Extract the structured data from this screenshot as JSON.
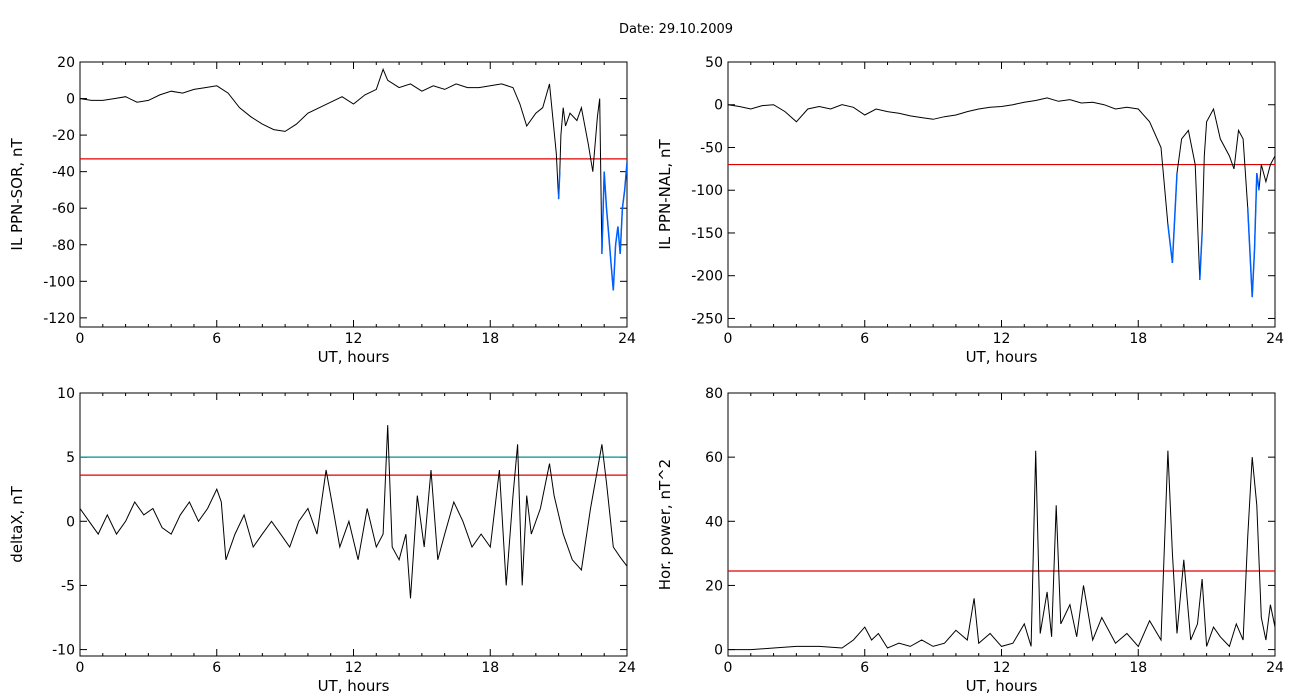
{
  "title": "Date:  29.10.2009",
  "colors": {
    "data": "#000000",
    "red": "#e00000",
    "blue": "#0060ff",
    "green": "#00c000",
    "teal": "#009090"
  },
  "chart_data": [
    {
      "type": "line",
      "ylabel": "IL PPN-SOR, nT",
      "xlabel": "UT, hours",
      "xlim": [
        0,
        24
      ],
      "ylim": [
        -125,
        20
      ],
      "xticks": [
        0,
        6,
        12,
        18,
        24
      ],
      "yticks": [
        20,
        0,
        -20,
        -40,
        -60,
        -80,
        -100,
        -120
      ],
      "threshold": -33,
      "series": [
        {
          "x": [
            0,
            0.5,
            1,
            1.5,
            2,
            2.5,
            3,
            3.5,
            4,
            4.5,
            5,
            5.5,
            6,
            6.5,
            7,
            7.5,
            8,
            8.5,
            9,
            9.5,
            10,
            10.5,
            11,
            11.5,
            12,
            12.5,
            13,
            13.3,
            13.5,
            14,
            14.5,
            15,
            15.5,
            16,
            16.5,
            17,
            17.5,
            18,
            18.5,
            19,
            19.3,
            19.6,
            20,
            20.3,
            20.6,
            20.9,
            21,
            21.05,
            21.1,
            21.2,
            21.3,
            21.5,
            21.8,
            22,
            22.3,
            22.5,
            22.7,
            22.8,
            22.9,
            23,
            23.1,
            23.2,
            23.3,
            23.4,
            23.5,
            23.6,
            23.7,
            23.8,
            23.9,
            24
          ],
          "y": [
            0,
            -1,
            -1,
            0,
            1,
            -2,
            -1,
            2,
            4,
            3,
            5,
            6,
            7,
            3,
            -5,
            -10,
            -14,
            -17,
            -18,
            -14,
            -8,
            -5,
            -2,
            1,
            -3,
            2,
            5,
            16,
            10,
            6,
            8,
            4,
            7,
            5,
            8,
            6,
            6,
            7,
            8,
            6,
            -3,
            -15,
            -8,
            -5,
            8,
            -30,
            -55,
            -40,
            -20,
            -5,
            -15,
            -8,
            -12,
            -5,
            -25,
            -40,
            -10,
            0,
            -85,
            -40,
            -60,
            -75,
            -90,
            -105,
            -80,
            -70,
            -85,
            -60,
            -50,
            -35
          ]
        }
      ]
    },
    {
      "type": "line",
      "ylabel": "IL PPN-NAL, nT",
      "xlabel": "UT, hours",
      "xlim": [
        0,
        24
      ],
      "ylim": [
        -260,
        50
      ],
      "xticks": [
        0,
        6,
        12,
        18,
        24
      ],
      "yticks": [
        50,
        0,
        -50,
        -100,
        -150,
        -200,
        -250
      ],
      "threshold": -70,
      "series": [
        {
          "x": [
            0,
            0.5,
            1,
            1.5,
            2,
            2.5,
            3,
            3.5,
            4,
            4.5,
            5,
            5.5,
            6,
            6.5,
            7,
            7.5,
            8,
            8.5,
            9,
            9.5,
            10,
            10.5,
            11,
            11.5,
            12,
            12.5,
            13,
            13.5,
            14,
            14.5,
            15,
            15.5,
            16,
            16.5,
            17,
            17.5,
            18,
            18.5,
            19,
            19.3,
            19.5,
            19.7,
            19.9,
            20.2,
            20.5,
            20.7,
            20.8,
            20.9,
            21,
            21.3,
            21.6,
            22,
            22.2,
            22.4,
            22.6,
            22.8,
            23,
            23.1,
            23.2,
            23.3,
            23.4,
            23.6,
            23.8,
            24
          ],
          "y": [
            0,
            -2,
            -5,
            -1,
            0,
            -8,
            -20,
            -5,
            -2,
            -5,
            0,
            -3,
            -12,
            -5,
            -8,
            -10,
            -13,
            -15,
            -17,
            -14,
            -12,
            -8,
            -5,
            -3,
            -2,
            0,
            3,
            5,
            8,
            4,
            6,
            2,
            3,
            0,
            -5,
            -3,
            -5,
            -20,
            -50,
            -140,
            -185,
            -80,
            -40,
            -30,
            -70,
            -205,
            -150,
            -60,
            -20,
            -5,
            -40,
            -60,
            -75,
            -30,
            -40,
            -120,
            -225,
            -170,
            -80,
            -100,
            -70,
            -90,
            -70,
            -60
          ]
        }
      ]
    },
    {
      "type": "line",
      "ylabel": "deltaX, nT",
      "xlabel": "UT, hours",
      "xlim": [
        0,
        24
      ],
      "ylim": [
        -10.5,
        10
      ],
      "xticks": [
        0,
        6,
        12,
        18,
        24
      ],
      "yticks": [
        10,
        5,
        0,
        -5,
        -10
      ],
      "threshold": 3.6,
      "threshold2": 5.0,
      "series": [
        {
          "x": [
            0,
            0.4,
            0.8,
            1.2,
            1.6,
            2,
            2.4,
            2.8,
            3.2,
            3.6,
            4,
            4.4,
            4.8,
            5.2,
            5.6,
            6,
            6.2,
            6.4,
            6.8,
            7.2,
            7.6,
            8,
            8.4,
            8.8,
            9.2,
            9.6,
            10,
            10.4,
            10.8,
            11,
            11.4,
            11.8,
            12.2,
            12.6,
            13,
            13.3,
            13.5,
            13.7,
            14,
            14.3,
            14.5,
            14.8,
            15.1,
            15.4,
            15.7,
            16,
            16.4,
            16.8,
            17.2,
            17.6,
            18,
            18.4,
            18.7,
            19,
            19.2,
            19.4,
            19.6,
            19.8,
            20.2,
            20.6,
            20.8,
            21.2,
            21.6,
            22,
            22.4,
            22.7,
            22.9,
            23.1,
            23.4,
            23.7,
            24
          ],
          "y": [
            1,
            0,
            -1,
            0.5,
            -1,
            0,
            1.5,
            0.5,
            1,
            -0.5,
            -1,
            0.5,
            1.5,
            0,
            1,
            2.5,
            1.5,
            -3,
            -1,
            0.5,
            -2,
            -1,
            0,
            -1,
            -2,
            0,
            1,
            -1,
            4,
            2,
            -2,
            0,
            -3,
            1,
            -2,
            -1,
            7.5,
            -2,
            -3,
            -1,
            -6,
            2,
            -2,
            4,
            -3,
            -1,
            1.5,
            0,
            -2,
            -1,
            -2,
            4,
            -5,
            2,
            6,
            -5,
            2,
            -1,
            1,
            4.5,
            2,
            -1,
            -3,
            -3.8,
            1,
            4,
            6,
            3,
            -2,
            -2.8,
            -3.5
          ]
        }
      ]
    },
    {
      "type": "line",
      "ylabel": "Hor. power, nT^2",
      "xlabel": "UT, hours",
      "xlim": [
        0,
        24
      ],
      "ylim": [
        -2,
        80
      ],
      "xticks": [
        0,
        6,
        12,
        18,
        24
      ],
      "yticks": [
        80,
        60,
        40,
        20,
        0
      ],
      "threshold": 24.5,
      "series": [
        {
          "x": [
            0,
            1,
            2,
            3,
            4,
            5,
            5.5,
            6,
            6.3,
            6.6,
            7,
            7.5,
            8,
            8.5,
            9,
            9.5,
            10,
            10.5,
            10.8,
            11,
            11.5,
            12,
            12.5,
            13,
            13.3,
            13.5,
            13.7,
            14,
            14.2,
            14.4,
            14.6,
            15,
            15.3,
            15.6,
            16,
            16.4,
            17,
            17.5,
            18,
            18.5,
            19,
            19.3,
            19.5,
            19.7,
            20,
            20.3,
            20.6,
            20.8,
            21,
            21.3,
            21.6,
            22,
            22.3,
            22.6,
            22.8,
            23,
            23.2,
            23.4,
            23.6,
            23.8,
            24
          ],
          "y": [
            0,
            0,
            0.5,
            1,
            1,
            0.5,
            3,
            7,
            3,
            5,
            0.5,
            2,
            1,
            3,
            1,
            2,
            6,
            3,
            16,
            2,
            5,
            1,
            2,
            8,
            1,
            62,
            5,
            18,
            4,
            45,
            8,
            14,
            4,
            20,
            3,
            10,
            2,
            5,
            1,
            9,
            3,
            62,
            30,
            5,
            28,
            3,
            8,
            22,
            1,
            7,
            4,
            1,
            8,
            3,
            35,
            60,
            45,
            10,
            3,
            14,
            7
          ]
        }
      ]
    }
  ]
}
